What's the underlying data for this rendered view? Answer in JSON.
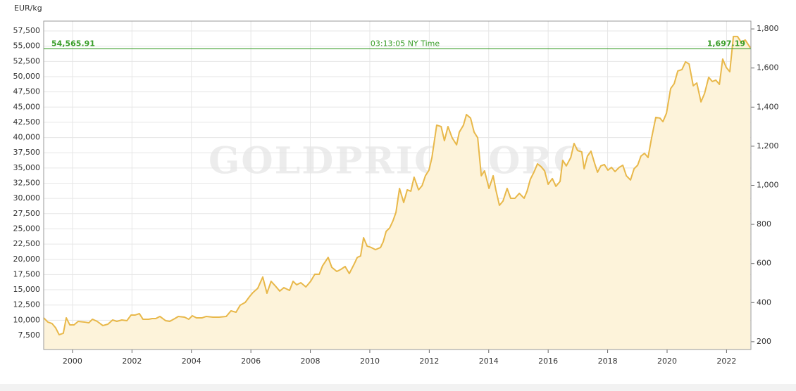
{
  "chart_data": {
    "type": "area",
    "y_axis_label": "EUR/kg",
    "watermark": "GOLDPRICE.ORG",
    "reference_line": {
      "value": 54565.91,
      "label": "54,565.91",
      "y2_value": 1697.19,
      "y2_label": "1,697.19",
      "time_label": "03:13:05 NY Time",
      "color": "#3a9e2a"
    },
    "x": [
      1999.03,
      1999.17,
      1999.31,
      1999.43,
      1999.55,
      1999.69,
      1999.79,
      1999.91,
      2000.05,
      2000.19,
      2000.4,
      2000.55,
      2000.67,
      2000.83,
      2001.02,
      2001.19,
      2001.35,
      2001.49,
      2001.66,
      2001.83,
      2001.97,
      2002.11,
      2002.25,
      2002.37,
      2002.56,
      2002.68,
      2002.8,
      2002.94,
      2003.13,
      2003.27,
      2003.44,
      2003.56,
      2003.77,
      2003.91,
      2004.03,
      2004.17,
      2004.36,
      2004.5,
      2004.72,
      2004.93,
      2005.17,
      2005.33,
      2005.5,
      2005.64,
      2005.81,
      2005.95,
      2006.07,
      2006.23,
      2006.4,
      2006.54,
      2006.68,
      2006.83,
      2006.97,
      2007.11,
      2007.3,
      2007.42,
      2007.54,
      2007.68,
      2007.85,
      2008.01,
      2008.15,
      2008.3,
      2008.41,
      2008.6,
      2008.72,
      2008.89,
      2009.03,
      2009.17,
      2009.31,
      2009.48,
      2009.58,
      2009.69,
      2009.79,
      2009.91,
      2010.05,
      2010.19,
      2010.36,
      2010.45,
      2010.55,
      2010.67,
      2010.78,
      2010.88,
      2011.0,
      2011.14,
      2011.26,
      2011.38,
      2011.49,
      2011.64,
      2011.76,
      2011.87,
      2011.99,
      2012.09,
      2012.25,
      2012.4,
      2012.51,
      2012.63,
      2012.77,
      2012.92,
      2013.01,
      2013.15,
      2013.25,
      2013.39,
      2013.51,
      2013.63,
      2013.75,
      2013.86,
      2014.01,
      2014.15,
      2014.24,
      2014.36,
      2014.48,
      2014.62,
      2014.74,
      2014.88,
      2015.03,
      2015.19,
      2015.29,
      2015.4,
      2015.52,
      2015.64,
      2015.76,
      2015.88,
      2016.0,
      2016.14,
      2016.26,
      2016.4,
      2016.49,
      2016.61,
      2016.76,
      2016.87,
      2016.99,
      2017.13,
      2017.21,
      2017.32,
      2017.44,
      2017.56,
      2017.66,
      2017.77,
      2017.89,
      2018.01,
      2018.13,
      2018.25,
      2018.39,
      2018.51,
      2018.63,
      2018.77,
      2018.89,
      2019.01,
      2019.12,
      2019.24,
      2019.36,
      2019.48,
      2019.62,
      2019.76,
      2019.86,
      2019.98,
      2020.12,
      2020.24,
      2020.36,
      2020.5,
      2020.62,
      2020.74,
      2020.88,
      2021.0,
      2021.14,
      2021.26,
      2021.4,
      2021.52,
      2021.64,
      2021.76,
      2021.87,
      2021.99,
      2022.11,
      2022.23,
      2022.37,
      2022.49,
      2022.63,
      2022.8
    ],
    "series": [
      {
        "color": "#e8b84a",
        "fill": "#fdf3da",
        "values": [
          10390,
          9700,
          9460,
          8770,
          7620,
          7850,
          10390,
          9230,
          9230,
          9810,
          9700,
          9580,
          10160,
          9810,
          9120,
          9350,
          10040,
          9810,
          10040,
          9930,
          10850,
          10850,
          11080,
          10160,
          10160,
          10270,
          10270,
          10620,
          9930,
          9810,
          10270,
          10620,
          10500,
          10160,
          10730,
          10390,
          10390,
          10620,
          10500,
          10500,
          10620,
          11540,
          11310,
          12470,
          12930,
          13850,
          14550,
          15240,
          17090,
          14430,
          16390,
          15590,
          14780,
          15350,
          14890,
          16390,
          15820,
          16160,
          15470,
          16390,
          17550,
          17550,
          18930,
          20320,
          18700,
          18010,
          18360,
          18820,
          17660,
          19280,
          20320,
          20550,
          23550,
          22170,
          21940,
          21590,
          21940,
          22860,
          24590,
          25170,
          26330,
          27710,
          31640,
          29330,
          31410,
          31180,
          33490,
          31410,
          32100,
          33720,
          34640,
          36720,
          42030,
          41800,
          39490,
          41800,
          39960,
          38800,
          40880,
          42030,
          43770,
          43190,
          40880,
          39960,
          33720,
          34530,
          31640,
          33720,
          31410,
          28870,
          29560,
          31640,
          30020,
          30020,
          30830,
          30020,
          31180,
          33140,
          34300,
          35680,
          35220,
          34530,
          32330,
          33260,
          31990,
          32790,
          36260,
          35340,
          36720,
          39030,
          37870,
          37640,
          34870,
          36950,
          37760,
          35800,
          34300,
          35340,
          35570,
          34640,
          35100,
          34410,
          35100,
          35450,
          33720,
          33030,
          34870,
          35450,
          36950,
          37410,
          36720,
          39960,
          43310,
          43190,
          42610,
          44000,
          48040,
          48850,
          50930,
          51160,
          52430,
          52080,
          48500,
          48960,
          45850,
          47230,
          49890,
          49200,
          49430,
          48730,
          52890,
          51510,
          50810,
          56590,
          56590,
          55660,
          56010,
          54740
        ]
      }
    ],
    "xlim": [
      1999.03,
      2022.82
    ],
    "xticks": [
      2000,
      2002,
      2004,
      2006,
      2008,
      2010,
      2012,
      2014,
      2016,
      2018,
      2020,
      2022
    ],
    "ylim": [
      5190,
      59120
    ],
    "yticks": [
      {
        "value": 7500,
        "label": "7,500"
      },
      {
        "value": 10000,
        "label": "10,000"
      },
      {
        "value": 12500,
        "label": "12,500"
      },
      {
        "value": 15000,
        "label": "15,000"
      },
      {
        "value": 17500,
        "label": "17,500"
      },
      {
        "value": 20000,
        "label": "20,000"
      },
      {
        "value": 22500,
        "label": "22,500"
      },
      {
        "value": 25000,
        "label": "25,000"
      },
      {
        "value": 27500,
        "label": "27,500"
      },
      {
        "value": 30000,
        "label": "30,000"
      },
      {
        "value": 32500,
        "label": "32,500"
      },
      {
        "value": 35000,
        "label": "35,000"
      },
      {
        "value": 37500,
        "label": "37,500"
      },
      {
        "value": 40000,
        "label": "40,000"
      },
      {
        "value": 42500,
        "label": "42,500"
      },
      {
        "value": 45000,
        "label": "45,000"
      },
      {
        "value": 47500,
        "label": "47,500"
      },
      {
        "value": 50000,
        "label": "50,000"
      },
      {
        "value": 52500,
        "label": "52,500"
      },
      {
        "value": 55000,
        "label": "55,000"
      },
      {
        "value": 57500,
        "label": "57,500"
      }
    ],
    "y2lim": [
      160,
      1840
    ],
    "y2ticks": [
      200,
      400,
      600,
      800,
      {
        "value": 1000,
        "label": "1,000"
      },
      {
        "value": 1200,
        "label": "1,200"
      },
      {
        "value": 1400,
        "label": "1,400"
      },
      {
        "value": 1600,
        "label": "1,600"
      },
      {
        "value": 1800,
        "label": "1,800"
      }
    ],
    "grid": true
  }
}
